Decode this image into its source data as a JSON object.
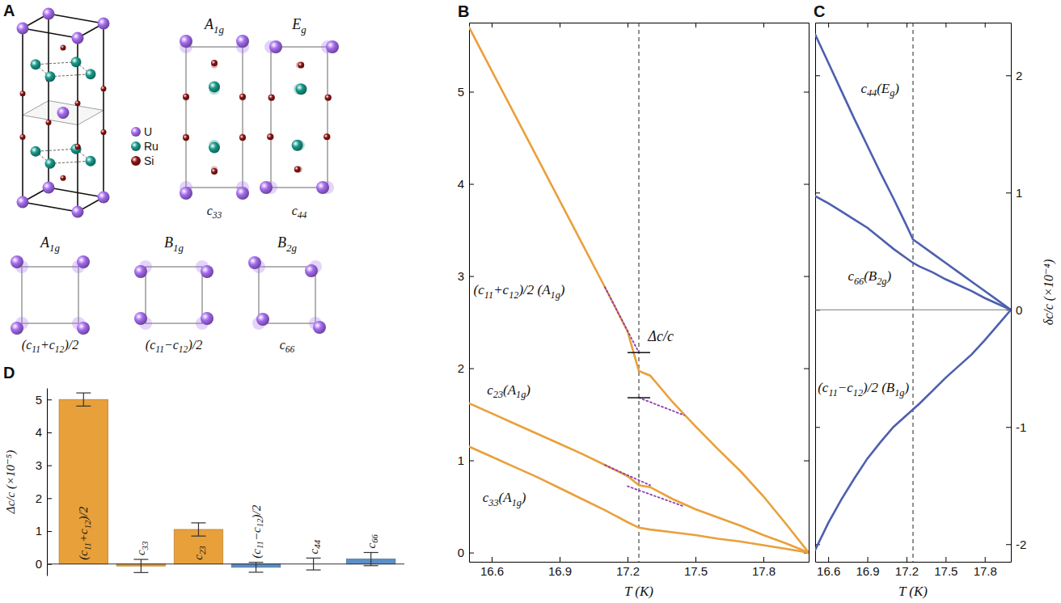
{
  "panel_a": {
    "label": "A",
    "legend": [
      {
        "name": "U",
        "color": "#a66cf0"
      },
      {
        "name": "Ru",
        "color": "#17998a"
      },
      {
        "name": "Si",
        "color": "#8e1212"
      }
    ],
    "modes": [
      {
        "symmetry": "A1g",
        "constant": "c33"
      },
      {
        "symmetry": "Eg",
        "constant": "c44"
      },
      {
        "symmetry": "A1g",
        "constant": "(c11+c12)/2"
      },
      {
        "symmetry": "B1g",
        "constant": "(c11−c12)/2"
      },
      {
        "symmetry": "B2g",
        "constant": "c66"
      }
    ]
  },
  "chart_data": [
    {
      "type": "line",
      "panel_label": "B",
      "x_label": "T (K)",
      "x": [
        16.5,
        16.6,
        16.7,
        16.8,
        16.9,
        17.0,
        17.1,
        17.2,
        17.25,
        17.3,
        17.4,
        17.5,
        17.6,
        17.7,
        17.8,
        17.9,
        18.0
      ],
      "xlim": [
        16.5,
        18.0
      ],
      "xticks": [
        16.6,
        16.9,
        17.2,
        17.5,
        17.8
      ],
      "ylim": [
        -0.1,
        5.75
      ],
      "yticks": [
        0,
        1,
        2,
        3,
        4,
        5
      ],
      "transition": 17.25,
      "step": {
        "label": "Δc/c",
        "above": 2.17,
        "below": 1.68
      },
      "series": [
        {
          "name": "(c11+c12)/2 (A1g)",
          "color": "#e9a03b",
          "values": [
            5.7,
            5.23,
            4.76,
            4.29,
            3.82,
            3.35,
            2.88,
            2.4,
            1.97,
            1.92,
            1.63,
            1.37,
            1.12,
            0.88,
            0.61,
            0.31,
            0
          ]
        },
        {
          "name": "c23(A1g)",
          "color": "#e9a03b",
          "values": [
            1.62,
            1.51,
            1.4,
            1.29,
            1.18,
            1.07,
            0.95,
            0.83,
            0.73,
            0.71,
            0.58,
            0.47,
            0.38,
            0.29,
            0.19,
            0.1,
            0
          ]
        },
        {
          "name": "c33(A1g)",
          "color": "#e9a03b",
          "values": [
            1.15,
            1.04,
            0.93,
            0.82,
            0.7,
            0.58,
            0.46,
            0.33,
            0.27,
            0.25,
            0.22,
            0.19,
            0.15,
            0.12,
            0.08,
            0.04,
            0
          ]
        },
        {
          "x": [
            17.1,
            17.25
          ],
          "values": [
            2.88,
            2.17
          ],
          "color": "#8b3fb0",
          "line_style": "dotted"
        },
        {
          "x": [
            17.25,
            17.45
          ],
          "values": [
            1.68,
            1.49
          ],
          "color": "#8b3fb0",
          "line_style": "dotted"
        },
        {
          "x": [
            17.1,
            17.3
          ],
          "values": [
            0.95,
            0.73
          ],
          "color": "#8b3fb0",
          "line_style": "dotted"
        },
        {
          "x": [
            17.2,
            17.45
          ],
          "values": [
            0.72,
            0.5
          ],
          "color": "#8b3fb0",
          "line_style": "dotted"
        }
      ]
    },
    {
      "type": "line",
      "panel_label": "C",
      "x_label": "T (K)",
      "y_label": "δc/c (×10⁻⁴)",
      "x": [
        16.5,
        16.6,
        16.7,
        16.8,
        16.9,
        17.0,
        17.1,
        17.2,
        17.25,
        17.3,
        17.4,
        17.5,
        17.6,
        17.7,
        17.8,
        17.9,
        18.0
      ],
      "xlim": [
        16.5,
        18.0
      ],
      "xticks": [
        16.6,
        16.9,
        17.2,
        17.5,
        17.8
      ],
      "ylim": [
        -2.15,
        2.45
      ],
      "yticks": [
        -2,
        -1,
        0,
        1,
        2
      ],
      "transition": 17.25,
      "zero_line": 0,
      "series": [
        {
          "name": "c44(Eg)",
          "color": "#4d5fae",
          "values": [
            2.35,
            2.11,
            1.87,
            1.63,
            1.4,
            1.17,
            0.95,
            0.72,
            0.6,
            0.56,
            0.48,
            0.4,
            0.32,
            0.24,
            0.16,
            0.08,
            0
          ]
        },
        {
          "name": "c66(B2g)",
          "color": "#4d5fae",
          "values": [
            0.97,
            0.91,
            0.84,
            0.77,
            0.7,
            0.61,
            0.52,
            0.44,
            0.4,
            0.37,
            0.32,
            0.26,
            0.21,
            0.16,
            0.1,
            0.05,
            0
          ]
        },
        {
          "name": "(c11−c12)/2 (B1g)",
          "color": "#4d5fae",
          "values": [
            -2.05,
            -1.82,
            -1.62,
            -1.44,
            -1.27,
            -1.13,
            -1.0,
            -0.9,
            -0.85,
            -0.8,
            -0.69,
            -0.58,
            -0.48,
            -0.38,
            -0.26,
            -0.13,
            0
          ]
        }
      ]
    },
    {
      "type": "bar",
      "panel_label": "D",
      "y_label": "Δc/c (×10⁻⁵)",
      "categories": [
        "(c11+c12)/2",
        "c33",
        "c23",
        "(c11−c12)/2",
        "c44",
        "c66"
      ],
      "values": [
        5.0,
        -0.06,
        1.05,
        -0.1,
        0.0,
        0.15
      ],
      "errors": [
        0.2,
        0.2,
        0.2,
        0.15,
        0.18,
        0.2
      ],
      "colors": [
        "#e8a03a",
        "#e8a03a",
        "#e8a03a",
        "#5b8fc7",
        "#5b8fc7",
        "#5b8fc7"
      ],
      "ylim": [
        -0.35,
        5.35
      ],
      "yticks": [
        0,
        1,
        2,
        3,
        4,
        5
      ]
    }
  ]
}
